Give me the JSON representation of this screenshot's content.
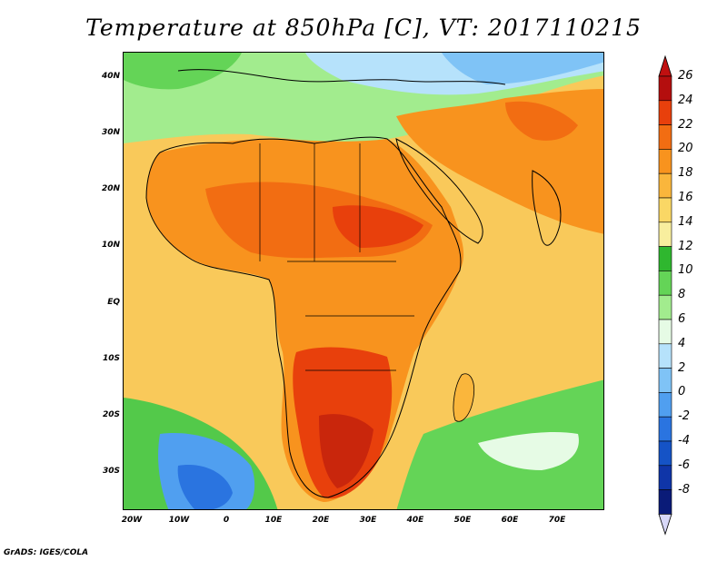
{
  "title": "Temperature at 850hPa [C], VT: 2017110215",
  "credit": "GrADS: IGES/COLA",
  "lat_ticks": [
    "40N",
    "30N",
    "20N",
    "10N",
    "EQ",
    "10S",
    "20S",
    "30S"
  ],
  "lon_ticks": [
    "20W",
    "10W",
    "0",
    "10E",
    "20E",
    "30E",
    "40E",
    "50E",
    "60E",
    "70E"
  ],
  "colorbar": {
    "labels": [
      "26",
      "24",
      "22",
      "20",
      "18",
      "16",
      "14",
      "12",
      "10",
      "8",
      "6",
      "4",
      "2",
      "0",
      "-2",
      "-4",
      "-6",
      "-8"
    ],
    "colors": [
      "#b40e0e",
      "#e8400c",
      "#f26d12",
      "#f8931e",
      "#fab63c",
      "#fad765",
      "#f8ee9e",
      "#2fb72f",
      "#64d457",
      "#a2ec8e",
      "#e6fbe5",
      "#b6e2fb",
      "#7fc3f6",
      "#509ff0",
      "#2a74e0",
      "#1553c6",
      "#0f35a8",
      "#0a1b78"
    ],
    "top_arrow_color": "#c01010",
    "bottom_arrow_color": "#d8d8f8"
  },
  "palette": {
    "sea_warm": "#f9b542",
    "sea_cool": "#f8df7a",
    "north_green": "#8fe07d",
    "north_blue": "#79b9f1",
    "south_green": "#53c94a",
    "south_blue": "#4a92ea",
    "hot_core": "#e2330c",
    "hot": "#f16513"
  }
}
